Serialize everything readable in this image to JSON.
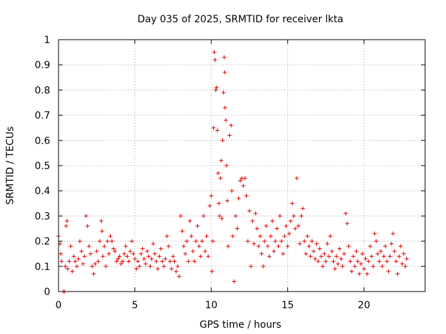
{
  "chart_data": {
    "type": "scatter",
    "title": "Day 035 of 2025, SRMTID for receiver lkta",
    "xlabel": "GPS time / hours",
    "ylabel": "SRMTID / TECUs",
    "xlim": [
      0,
      24
    ],
    "ylim": [
      0,
      1
    ],
    "xticks": [
      0,
      5,
      10,
      15,
      20
    ],
    "yticks": [
      0,
      0.1,
      0.2,
      0.3,
      0.4,
      0.5,
      0.6,
      0.7,
      0.8,
      0.9,
      1
    ],
    "x_tick_labels": [
      "0",
      "5",
      "10",
      "15",
      "20"
    ],
    "y_tick_labels": [
      "0",
      "0.1",
      "0.2",
      "0.3",
      "0.4",
      "0.5",
      "0.6",
      "0.7",
      "0.8",
      "0.9",
      "1"
    ],
    "grid": true,
    "marker": "plus",
    "color": "#e00000",
    "series": [
      {
        "name": "SRMTID",
        "points": [
          [
            0.0,
            0.22
          ],
          [
            0.1,
            0.19
          ],
          [
            0.15,
            0.15
          ],
          [
            0.2,
            0.12
          ],
          [
            0.3,
            0.0
          ],
          [
            0.4,
            0.0
          ],
          [
            0.45,
            0.1
          ],
          [
            0.5,
            0.26
          ],
          [
            0.55,
            0.28
          ],
          [
            0.6,
            0.09
          ],
          [
            0.7,
            0.12
          ],
          [
            0.8,
            0.18
          ],
          [
            0.9,
            0.08
          ],
          [
            1.0,
            0.14
          ],
          [
            1.1,
            0.12
          ],
          [
            1.2,
            0.1
          ],
          [
            1.3,
            0.13
          ],
          [
            1.4,
            0.2
          ],
          [
            1.5,
            0.16
          ],
          [
            1.6,
            0.11
          ],
          [
            1.7,
            0.14
          ],
          [
            1.8,
            0.3
          ],
          [
            1.9,
            0.26
          ],
          [
            2.0,
            0.18
          ],
          [
            2.1,
            0.15
          ],
          [
            2.2,
            0.1
          ],
          [
            2.3,
            0.07
          ],
          [
            2.4,
            0.11
          ],
          [
            2.5,
            0.16
          ],
          [
            2.6,
            0.12
          ],
          [
            2.7,
            0.2
          ],
          [
            2.8,
            0.28
          ],
          [
            2.85,
            0.24
          ],
          [
            2.9,
            0.14
          ],
          [
            3.0,
            0.18
          ],
          [
            3.1,
            0.1
          ],
          [
            3.2,
            0.2
          ],
          [
            3.3,
            0.15
          ],
          [
            3.4,
            0.22
          ],
          [
            3.5,
            0.2
          ],
          [
            3.6,
            0.17
          ],
          [
            3.7,
            0.16
          ],
          [
            3.8,
            0.12
          ],
          [
            3.9,
            0.13
          ],
          [
            4.0,
            0.14
          ],
          [
            4.1,
            0.11
          ],
          [
            4.2,
            0.12
          ],
          [
            4.3,
            0.15
          ],
          [
            4.4,
            0.18
          ],
          [
            4.5,
            0.14
          ],
          [
            4.6,
            0.12
          ],
          [
            4.7,
            0.16
          ],
          [
            4.8,
            0.2
          ],
          [
            4.9,
            0.15
          ],
          [
            5.0,
            0.13
          ],
          [
            5.1,
            0.09
          ],
          [
            5.2,
            0.12
          ],
          [
            5.3,
            0.1
          ],
          [
            5.4,
            0.15
          ],
          [
            5.5,
            0.17
          ],
          [
            5.6,
            0.13
          ],
          [
            5.7,
            0.11
          ],
          [
            5.8,
            0.16
          ],
          [
            5.9,
            0.14
          ],
          [
            6.0,
            0.1
          ],
          [
            6.1,
            0.13
          ],
          [
            6.2,
            0.19
          ],
          [
            6.3,
            0.15
          ],
          [
            6.4,
            0.12
          ],
          [
            6.5,
            0.09
          ],
          [
            6.6,
            0.14
          ],
          [
            6.7,
            0.17
          ],
          [
            6.8,
            0.12
          ],
          [
            6.9,
            0.1
          ],
          [
            7.0,
            0.13
          ],
          [
            7.1,
            0.22
          ],
          [
            7.2,
            0.18
          ],
          [
            7.3,
            0.12
          ],
          [
            7.4,
            0.09
          ],
          [
            7.5,
            0.14
          ],
          [
            7.6,
            0.12
          ],
          [
            7.7,
            0.08
          ],
          [
            7.8,
            0.1
          ],
          [
            7.9,
            0.06
          ],
          [
            8.0,
            0.3
          ],
          [
            8.1,
            0.24
          ],
          [
            8.2,
            0.18
          ],
          [
            8.3,
            0.15
          ],
          [
            8.4,
            0.2
          ],
          [
            8.5,
            0.12
          ],
          [
            8.6,
            0.28
          ],
          [
            8.7,
            0.22
          ],
          [
            8.8,
            0.16
          ],
          [
            8.9,
            0.12
          ],
          [
            9.0,
            0.2
          ],
          [
            9.1,
            0.26
          ],
          [
            9.2,
            0.18
          ],
          [
            9.3,
            0.14
          ],
          [
            9.4,
            0.2
          ],
          [
            9.5,
            0.3
          ],
          [
            9.6,
            0.16
          ],
          [
            9.7,
            0.22
          ],
          [
            9.8,
            0.14
          ],
          [
            9.9,
            0.34
          ],
          [
            10.0,
            0.38
          ],
          [
            10.05,
            0.08
          ],
          [
            10.1,
            0.2
          ],
          [
            10.15,
            0.65
          ],
          [
            10.2,
            0.95
          ],
          [
            10.25,
            0.92
          ],
          [
            10.3,
            0.8
          ],
          [
            10.35,
            0.81
          ],
          [
            10.4,
            0.64
          ],
          [
            10.45,
            0.47
          ],
          [
            10.5,
            0.35
          ],
          [
            10.55,
            0.3
          ],
          [
            10.6,
            0.45
          ],
          [
            10.65,
            0.52
          ],
          [
            10.7,
            0.29
          ],
          [
            10.75,
            0.6
          ],
          [
            10.8,
            0.79
          ],
          [
            10.85,
            0.93
          ],
          [
            10.88,
            0.87
          ],
          [
            10.9,
            0.73
          ],
          [
            10.95,
            0.68
          ],
          [
            11.0,
            0.5
          ],
          [
            11.05,
            0.36
          ],
          [
            11.1,
            0.18
          ],
          [
            11.2,
            0.62
          ],
          [
            11.3,
            0.66
          ],
          [
            11.35,
            0.4
          ],
          [
            11.4,
            0.22
          ],
          [
            11.5,
            0.04
          ],
          [
            11.6,
            0.3
          ],
          [
            11.7,
            0.25
          ],
          [
            11.8,
            0.37
          ],
          [
            11.9,
            0.44
          ],
          [
            12.0,
            0.45
          ],
          [
            12.1,
            0.42
          ],
          [
            12.2,
            0.45
          ],
          [
            12.3,
            0.38
          ],
          [
            12.4,
            0.2
          ],
          [
            12.5,
            0.32
          ],
          [
            12.6,
            0.1
          ],
          [
            12.7,
            0.28
          ],
          [
            12.8,
            0.19
          ],
          [
            12.9,
            0.31
          ],
          [
            13.0,
            0.25
          ],
          [
            13.1,
            0.18
          ],
          [
            13.2,
            0.22
          ],
          [
            13.3,
            0.15
          ],
          [
            13.4,
            0.1
          ],
          [
            13.5,
            0.2
          ],
          [
            13.6,
            0.26
          ],
          [
            13.7,
            0.18
          ],
          [
            13.8,
            0.14
          ],
          [
            13.9,
            0.22
          ],
          [
            14.0,
            0.28
          ],
          [
            14.1,
            0.16
          ],
          [
            14.2,
            0.2
          ],
          [
            14.3,
            0.25
          ],
          [
            14.4,
            0.18
          ],
          [
            14.5,
            0.3
          ],
          [
            14.6,
            0.2
          ],
          [
            14.7,
            0.15
          ],
          [
            14.8,
            0.22
          ],
          [
            14.9,
            0.26
          ],
          [
            15.0,
            0.18
          ],
          [
            15.1,
            0.23
          ],
          [
            15.2,
            0.28
          ],
          [
            15.3,
            0.35
          ],
          [
            15.4,
            0.3
          ],
          [
            15.5,
            0.25
          ],
          [
            15.6,
            0.45
          ],
          [
            15.7,
            0.26
          ],
          [
            15.8,
            0.19
          ],
          [
            15.9,
            0.3
          ],
          [
            16.0,
            0.33
          ],
          [
            16.1,
            0.2
          ],
          [
            16.2,
            0.15
          ],
          [
            16.3,
            0.22
          ],
          [
            16.4,
            0.18
          ],
          [
            16.5,
            0.14
          ],
          [
            16.6,
            0.2
          ],
          [
            16.7,
            0.16
          ],
          [
            16.8,
            0.13
          ],
          [
            16.9,
            0.19
          ],
          [
            17.0,
            0.12
          ],
          [
            17.1,
            0.17
          ],
          [
            17.2,
            0.14
          ],
          [
            17.3,
            0.1
          ],
          [
            17.4,
            0.15
          ],
          [
            17.5,
            0.12
          ],
          [
            17.6,
            0.19
          ],
          [
            17.7,
            0.14
          ],
          [
            17.8,
            0.22
          ],
          [
            17.9,
            0.16
          ],
          [
            18.0,
            0.12
          ],
          [
            18.1,
            0.09
          ],
          [
            18.2,
            0.14
          ],
          [
            18.3,
            0.11
          ],
          [
            18.4,
            0.17
          ],
          [
            18.5,
            0.13
          ],
          [
            18.6,
            0.1
          ],
          [
            18.7,
            0.15
          ],
          [
            18.8,
            0.31
          ],
          [
            18.9,
            0.27
          ],
          [
            19.0,
            0.18
          ],
          [
            19.1,
            0.12
          ],
          [
            19.2,
            0.08
          ],
          [
            19.3,
            0.14
          ],
          [
            19.4,
            0.1
          ],
          [
            19.5,
            0.16
          ],
          [
            19.6,
            0.12
          ],
          [
            19.7,
            0.07
          ],
          [
            19.8,
            0.11
          ],
          [
            19.9,
            0.15
          ],
          [
            20.0,
            0.09
          ],
          [
            20.1,
            0.13
          ],
          [
            20.2,
            0.07
          ],
          [
            20.3,
            0.12
          ],
          [
            20.4,
            0.18
          ],
          [
            20.5,
            0.14
          ],
          [
            20.6,
            0.1
          ],
          [
            20.7,
            0.23
          ],
          [
            20.8,
            0.2
          ],
          [
            20.9,
            0.15
          ],
          [
            21.0,
            0.12
          ],
          [
            21.1,
            0.16
          ],
          [
            21.2,
            0.1
          ],
          [
            21.3,
            0.14
          ],
          [
            21.4,
            0.18
          ],
          [
            21.5,
            0.12
          ],
          [
            21.6,
            0.08
          ],
          [
            21.7,
            0.14
          ],
          [
            21.8,
            0.19
          ],
          [
            21.9,
            0.23
          ],
          [
            22.0,
            0.16
          ],
          [
            22.1,
            0.12
          ],
          [
            22.2,
            0.07
          ],
          [
            22.3,
            0.14
          ],
          [
            22.4,
            0.18
          ],
          [
            22.5,
            0.11
          ],
          [
            22.6,
            0.15
          ],
          [
            22.7,
            0.1
          ],
          [
            22.8,
            0.13
          ]
        ]
      }
    ]
  }
}
